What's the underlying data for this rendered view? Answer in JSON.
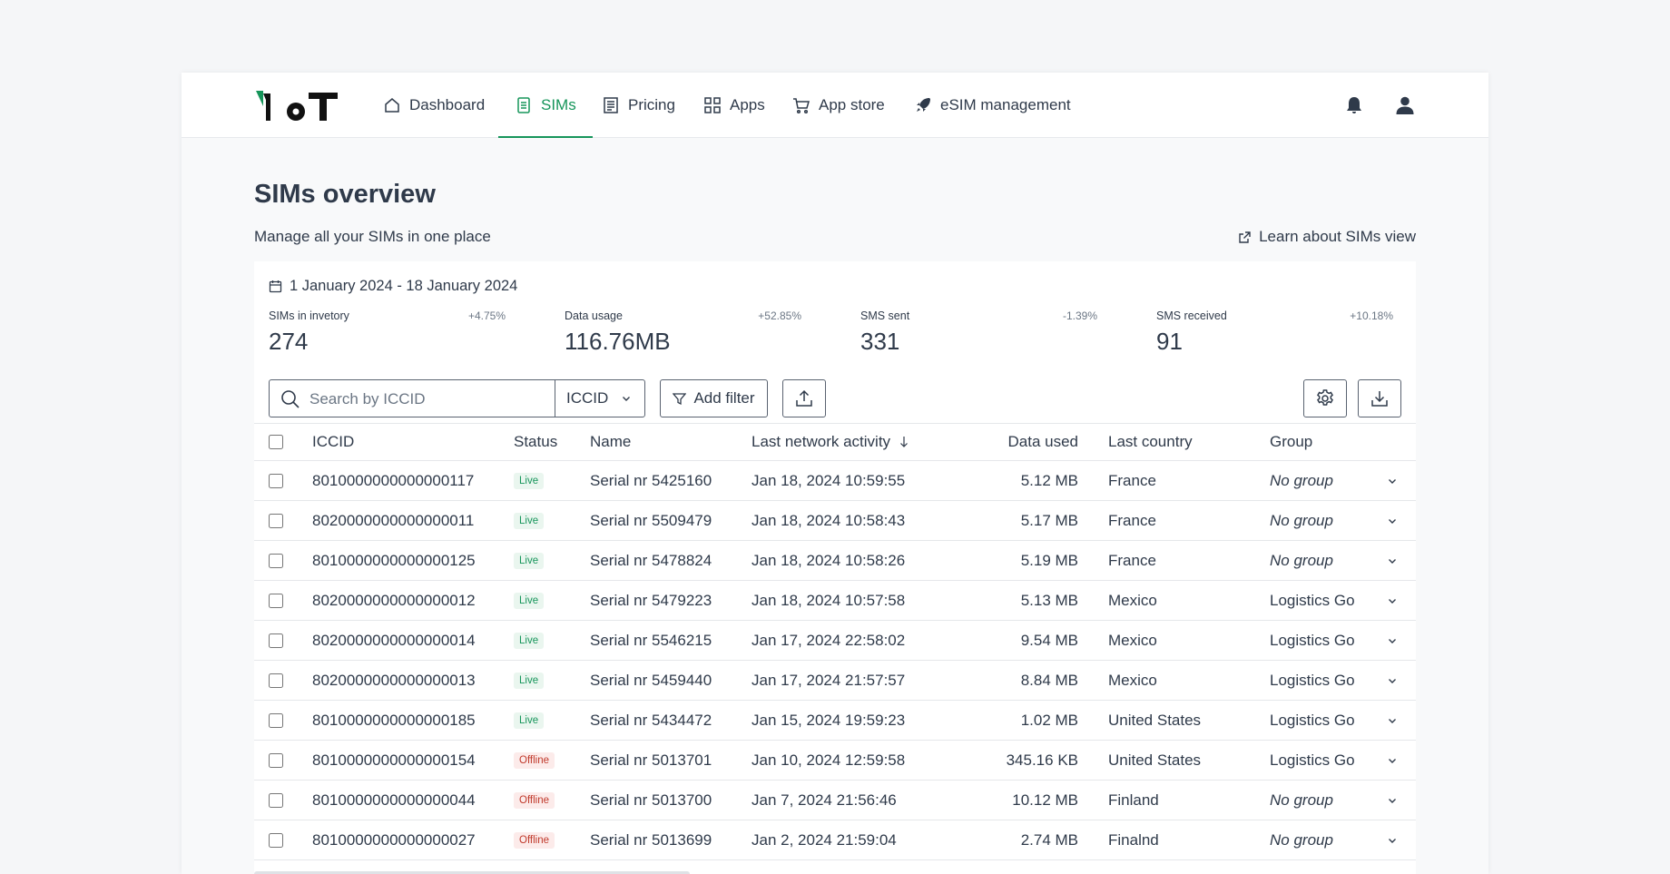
{
  "nav": {
    "items": [
      {
        "label": "Dashboard",
        "icon": "home-icon"
      },
      {
        "label": "SIMs",
        "icon": "sim-icon",
        "active": true
      },
      {
        "label": "Pricing",
        "icon": "pricing-icon"
      },
      {
        "label": "Apps",
        "icon": "grid-icon"
      },
      {
        "label": "App store",
        "icon": "cart-icon"
      },
      {
        "label": "eSIM management",
        "icon": "rocket-icon"
      }
    ]
  },
  "page": {
    "title": "SIMs overview",
    "subtitle": "Manage all your SIMs in one place",
    "learn_link": "Learn about SIMs view"
  },
  "date_range": "1 January 2024 - 18 January 2024",
  "stats": [
    {
      "label": "SIMs in invetory",
      "change": "+4.75%",
      "value": "274"
    },
    {
      "label": "Data usage",
      "change": "+52.85%",
      "value": "116.76MB"
    },
    {
      "label": "SMS sent",
      "change": "-1.39%",
      "value": "331"
    },
    {
      "label": "SMS received",
      "change": "+10.18%",
      "value": "91"
    }
  ],
  "toolbar": {
    "search_placeholder": "Search by ICCID",
    "search_field": "ICCID",
    "add_filter": "Add filter"
  },
  "table": {
    "headers": {
      "iccid": "ICCID",
      "status": "Status",
      "name": "Name",
      "activity": "Last network activity",
      "data": "Data used",
      "country": "Last country",
      "group": "Group"
    },
    "rows": [
      {
        "iccid": "8010000000000000117",
        "status": "Live",
        "name": "Serial nr 5425160",
        "activity": "Jan 18, 2024 10:59:55",
        "data": "5.12 MB",
        "country": "France",
        "group": "No group"
      },
      {
        "iccid": "8020000000000000011",
        "status": "Live",
        "name": "Serial nr 5509479",
        "activity": "Jan 18, 2024 10:58:43",
        "data": "5.17 MB",
        "country": "France",
        "group": "No group"
      },
      {
        "iccid": "8010000000000000125",
        "status": "Live",
        "name": "Serial nr 5478824",
        "activity": "Jan 18, 2024 10:58:26",
        "data": "5.19 MB",
        "country": "France",
        "group": "No group"
      },
      {
        "iccid": "8020000000000000012",
        "status": "Live",
        "name": "Serial nr 5479223",
        "activity": "Jan 18, 2024 10:57:58",
        "data": "5.13 MB",
        "country": "Mexico",
        "group": "Logistics Go"
      },
      {
        "iccid": "8020000000000000014",
        "status": "Live",
        "name": "Serial nr 5546215",
        "activity": "Jan 17, 2024 22:58:02",
        "data": "9.54 MB",
        "country": "Mexico",
        "group": "Logistics Go"
      },
      {
        "iccid": "8020000000000000013",
        "status": "Live",
        "name": "Serial nr 5459440",
        "activity": "Jan 17, 2024 21:57:57",
        "data": "8.84 MB",
        "country": "Mexico",
        "group": "Logistics Go"
      },
      {
        "iccid": "8010000000000000185",
        "status": "Live",
        "name": "Serial nr 5434472",
        "activity": "Jan 15, 2024 19:59:23",
        "data": "1.02 MB",
        "country": "United States",
        "group": "Logistics Go"
      },
      {
        "iccid": "8010000000000000154",
        "status": "Offline",
        "name": "Serial nr 5013701",
        "activity": "Jan 10, 2024 12:59:58",
        "data": "345.16 KB",
        "country": "United States",
        "group": "Logistics Go"
      },
      {
        "iccid": "8010000000000000044",
        "status": "Offline",
        "name": "Serial nr 5013700",
        "activity": "Jan 7, 2024 21:56:46",
        "data": "10.12 MB",
        "country": "Finland",
        "group": "No group"
      },
      {
        "iccid": "8010000000000000027",
        "status": "Offline",
        "name": "Serial nr 5013699",
        "activity": "Jan 2, 2024 21:59:04",
        "data": "2.74 MB",
        "country": "Finalnd",
        "group": "No group"
      }
    ]
  },
  "colors": {
    "accent": "#16955a",
    "live": "#16955a",
    "offline": "#c0392b",
    "text": "#2f3a4a"
  }
}
